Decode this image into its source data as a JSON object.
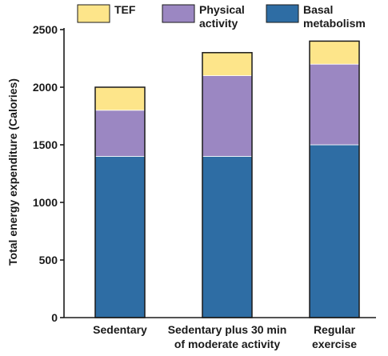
{
  "chart_data": {
    "type": "bar",
    "stacked": true,
    "ylabel": "Total energy expenditure (Calories)",
    "xlabel": "",
    "ylim": [
      0,
      2500
    ],
    "yticks": [
      0,
      500,
      1000,
      1500,
      2000,
      2500
    ],
    "categories": [
      [
        "Sedentary"
      ],
      [
        "Sedentary plus 30 min",
        "of moderate activity"
      ],
      [
        "Regular",
        "exercise"
      ]
    ],
    "series": [
      {
        "name": "Basal metabolism",
        "values": [
          1400,
          1400,
          1500
        ],
        "color": "#2e6da4"
      },
      {
        "name": "Physical activity",
        "values": [
          400,
          700,
          700
        ],
        "color": "#9b87c2"
      },
      {
        "name": "TEF",
        "values": [
          200,
          200,
          200
        ],
        "color": "#fde58a"
      }
    ],
    "legend": {
      "placement": "top",
      "items": [
        {
          "label": [
            "TEF"
          ],
          "color": "#fde58a"
        },
        {
          "label": [
            "Physical",
            "activity"
          ],
          "color": "#9b87c2"
        },
        {
          "label": [
            "Basal",
            "metabolism"
          ],
          "color": "#2e6da4"
        }
      ]
    },
    "grid": false
  }
}
